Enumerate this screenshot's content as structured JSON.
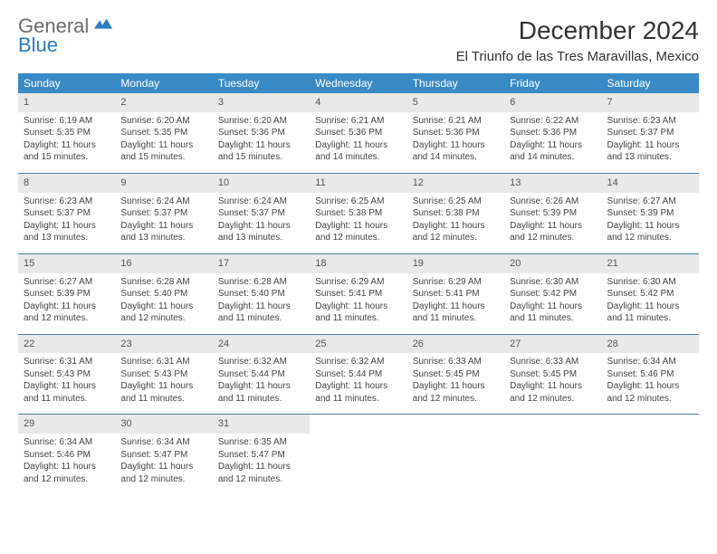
{
  "logo": {
    "line1": "General",
    "line2": "Blue"
  },
  "title": "December 2024",
  "subtitle": "El Triunfo de las Tres Maravillas, Mexico",
  "colors": {
    "header_bg": "#3a8ac6",
    "header_fg": "#ffffff",
    "daynum_bg": "#e9e9e9",
    "sep": "#4a7fa8",
    "logo_gray": "#6b6b6b",
    "logo_blue": "#2b7bbf"
  },
  "dows": [
    "Sunday",
    "Monday",
    "Tuesday",
    "Wednesday",
    "Thursday",
    "Friday",
    "Saturday"
  ],
  "weeks": [
    [
      {
        "n": "1",
        "sr": "Sunrise: 6:19 AM",
        "ss": "Sunset: 5:35 PM",
        "dl1": "Daylight: 11 hours",
        "dl2": "and 15 minutes."
      },
      {
        "n": "2",
        "sr": "Sunrise: 6:20 AM",
        "ss": "Sunset: 5:35 PM",
        "dl1": "Daylight: 11 hours",
        "dl2": "and 15 minutes."
      },
      {
        "n": "3",
        "sr": "Sunrise: 6:20 AM",
        "ss": "Sunset: 5:36 PM",
        "dl1": "Daylight: 11 hours",
        "dl2": "and 15 minutes."
      },
      {
        "n": "4",
        "sr": "Sunrise: 6:21 AM",
        "ss": "Sunset: 5:36 PM",
        "dl1": "Daylight: 11 hours",
        "dl2": "and 14 minutes."
      },
      {
        "n": "5",
        "sr": "Sunrise: 6:21 AM",
        "ss": "Sunset: 5:36 PM",
        "dl1": "Daylight: 11 hours",
        "dl2": "and 14 minutes."
      },
      {
        "n": "6",
        "sr": "Sunrise: 6:22 AM",
        "ss": "Sunset: 5:36 PM",
        "dl1": "Daylight: 11 hours",
        "dl2": "and 14 minutes."
      },
      {
        "n": "7",
        "sr": "Sunrise: 6:23 AM",
        "ss": "Sunset: 5:37 PM",
        "dl1": "Daylight: 11 hours",
        "dl2": "and 13 minutes."
      }
    ],
    [
      {
        "n": "8",
        "sr": "Sunrise: 6:23 AM",
        "ss": "Sunset: 5:37 PM",
        "dl1": "Daylight: 11 hours",
        "dl2": "and 13 minutes."
      },
      {
        "n": "9",
        "sr": "Sunrise: 6:24 AM",
        "ss": "Sunset: 5:37 PM",
        "dl1": "Daylight: 11 hours",
        "dl2": "and 13 minutes."
      },
      {
        "n": "10",
        "sr": "Sunrise: 6:24 AM",
        "ss": "Sunset: 5:37 PM",
        "dl1": "Daylight: 11 hours",
        "dl2": "and 13 minutes."
      },
      {
        "n": "11",
        "sr": "Sunrise: 6:25 AM",
        "ss": "Sunset: 5:38 PM",
        "dl1": "Daylight: 11 hours",
        "dl2": "and 12 minutes."
      },
      {
        "n": "12",
        "sr": "Sunrise: 6:25 AM",
        "ss": "Sunset: 5:38 PM",
        "dl1": "Daylight: 11 hours",
        "dl2": "and 12 minutes."
      },
      {
        "n": "13",
        "sr": "Sunrise: 6:26 AM",
        "ss": "Sunset: 5:39 PM",
        "dl1": "Daylight: 11 hours",
        "dl2": "and 12 minutes."
      },
      {
        "n": "14",
        "sr": "Sunrise: 6:27 AM",
        "ss": "Sunset: 5:39 PM",
        "dl1": "Daylight: 11 hours",
        "dl2": "and 12 minutes."
      }
    ],
    [
      {
        "n": "15",
        "sr": "Sunrise: 6:27 AM",
        "ss": "Sunset: 5:39 PM",
        "dl1": "Daylight: 11 hours",
        "dl2": "and 12 minutes."
      },
      {
        "n": "16",
        "sr": "Sunrise: 6:28 AM",
        "ss": "Sunset: 5:40 PM",
        "dl1": "Daylight: 11 hours",
        "dl2": "and 12 minutes."
      },
      {
        "n": "17",
        "sr": "Sunrise: 6:28 AM",
        "ss": "Sunset: 5:40 PM",
        "dl1": "Daylight: 11 hours",
        "dl2": "and 11 minutes."
      },
      {
        "n": "18",
        "sr": "Sunrise: 6:29 AM",
        "ss": "Sunset: 5:41 PM",
        "dl1": "Daylight: 11 hours",
        "dl2": "and 11 minutes."
      },
      {
        "n": "19",
        "sr": "Sunrise: 6:29 AM",
        "ss": "Sunset: 5:41 PM",
        "dl1": "Daylight: 11 hours",
        "dl2": "and 11 minutes."
      },
      {
        "n": "20",
        "sr": "Sunrise: 6:30 AM",
        "ss": "Sunset: 5:42 PM",
        "dl1": "Daylight: 11 hours",
        "dl2": "and 11 minutes."
      },
      {
        "n": "21",
        "sr": "Sunrise: 6:30 AM",
        "ss": "Sunset: 5:42 PM",
        "dl1": "Daylight: 11 hours",
        "dl2": "and 11 minutes."
      }
    ],
    [
      {
        "n": "22",
        "sr": "Sunrise: 6:31 AM",
        "ss": "Sunset: 5:43 PM",
        "dl1": "Daylight: 11 hours",
        "dl2": "and 11 minutes."
      },
      {
        "n": "23",
        "sr": "Sunrise: 6:31 AM",
        "ss": "Sunset: 5:43 PM",
        "dl1": "Daylight: 11 hours",
        "dl2": "and 11 minutes."
      },
      {
        "n": "24",
        "sr": "Sunrise: 6:32 AM",
        "ss": "Sunset: 5:44 PM",
        "dl1": "Daylight: 11 hours",
        "dl2": "and 11 minutes."
      },
      {
        "n": "25",
        "sr": "Sunrise: 6:32 AM",
        "ss": "Sunset: 5:44 PM",
        "dl1": "Daylight: 11 hours",
        "dl2": "and 11 minutes."
      },
      {
        "n": "26",
        "sr": "Sunrise: 6:33 AM",
        "ss": "Sunset: 5:45 PM",
        "dl1": "Daylight: 11 hours",
        "dl2": "and 12 minutes."
      },
      {
        "n": "27",
        "sr": "Sunrise: 6:33 AM",
        "ss": "Sunset: 5:45 PM",
        "dl1": "Daylight: 11 hours",
        "dl2": "and 12 minutes."
      },
      {
        "n": "28",
        "sr": "Sunrise: 6:34 AM",
        "ss": "Sunset: 5:46 PM",
        "dl1": "Daylight: 11 hours",
        "dl2": "and 12 minutes."
      }
    ],
    [
      {
        "n": "29",
        "sr": "Sunrise: 6:34 AM",
        "ss": "Sunset: 5:46 PM",
        "dl1": "Daylight: 11 hours",
        "dl2": "and 12 minutes."
      },
      {
        "n": "30",
        "sr": "Sunrise: 6:34 AM",
        "ss": "Sunset: 5:47 PM",
        "dl1": "Daylight: 11 hours",
        "dl2": "and 12 minutes."
      },
      {
        "n": "31",
        "sr": "Sunrise: 6:35 AM",
        "ss": "Sunset: 5:47 PM",
        "dl1": "Daylight: 11 hours",
        "dl2": "and 12 minutes."
      },
      null,
      null,
      null,
      null
    ]
  ]
}
